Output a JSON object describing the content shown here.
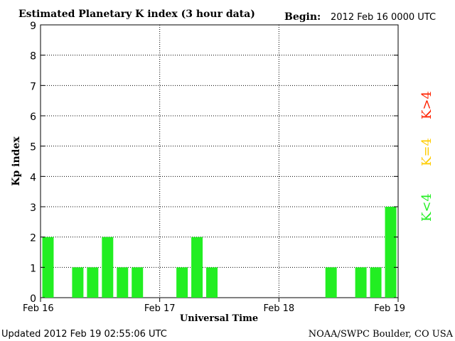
{
  "header": {
    "title": "Estimated Planetary K index (3 hour data)",
    "begin_label": "Begin:",
    "begin_value": "2012 Feb 16 0000 UTC"
  },
  "footer": {
    "updated": "Updated 2012 Feb 19 02:55:06 UTC",
    "source": "NOAA/SWPC Boulder, CO USA"
  },
  "legend": [
    {
      "label": "K>4",
      "color": "#ff2200"
    },
    {
      "label": "K=4",
      "color": "#ffcc00"
    },
    {
      "label": "K<4",
      "color": "#22ee22"
    }
  ],
  "chart_data": {
    "type": "bar",
    "title": "Estimated Planetary K index (3 hour data)",
    "xlabel": "Universal Time",
    "ylabel": "Kp index",
    "ylim": [
      0,
      9
    ],
    "yticks": [
      "0",
      "1",
      "2",
      "3",
      "4",
      "5",
      "6",
      "7",
      "8",
      "9"
    ],
    "xticks": [
      "Feb 16",
      "Feb 17",
      "Feb 18",
      "Feb 19"
    ],
    "grid": true,
    "bar_color": "#22ee22",
    "interval_hours": 3,
    "values": [
      2,
      0,
      1,
      1,
      2,
      1,
      1,
      0,
      0,
      1,
      2,
      1,
      0,
      0,
      0,
      0,
      0,
      0,
      0,
      1,
      0,
      1,
      1,
      3
    ]
  }
}
